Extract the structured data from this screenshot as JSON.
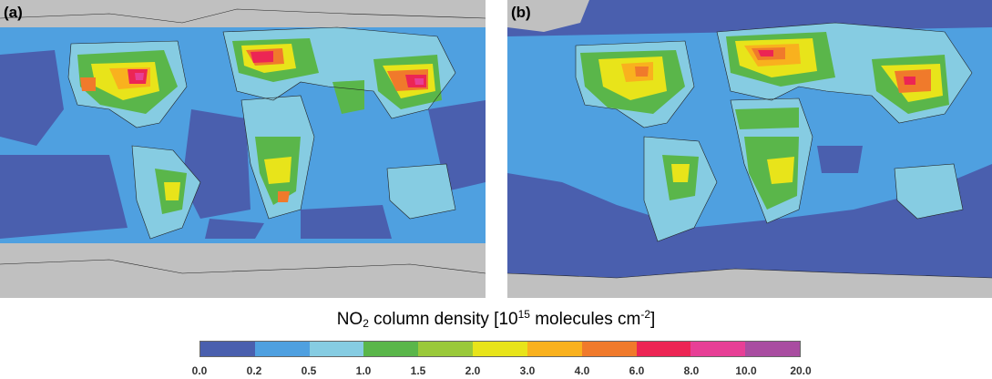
{
  "panels": [
    {
      "label": "(a)"
    },
    {
      "label": "(b)"
    }
  ],
  "legend": {
    "title_main": "NO",
    "title_sub": "2",
    "title_mid": " column density [10",
    "title_sup1": "15",
    "title_mid2": " molecules cm",
    "title_sup2": "-2",
    "title_end": "]",
    "ticks": [
      "0.0",
      "0.2",
      "0.5",
      "1.0",
      "1.5",
      "2.0",
      "3.0",
      "4.0",
      "6.0",
      "8.0",
      "10.0",
      "20.0"
    ],
    "colors": [
      "#4a5fae",
      "#4fa0e0",
      "#86cce2",
      "#5ab64a",
      "#9ac93a",
      "#e8e41a",
      "#f9b11e",
      "#f07a2b",
      "#ec2554",
      "#e73f96",
      "#a94da1"
    ]
  },
  "map_colors": {
    "no_data": "#c0c0c0",
    "ocean_low": "#4a5fae",
    "ocean_mid": "#4fa0e0",
    "land_low": "#86cce2"
  }
}
